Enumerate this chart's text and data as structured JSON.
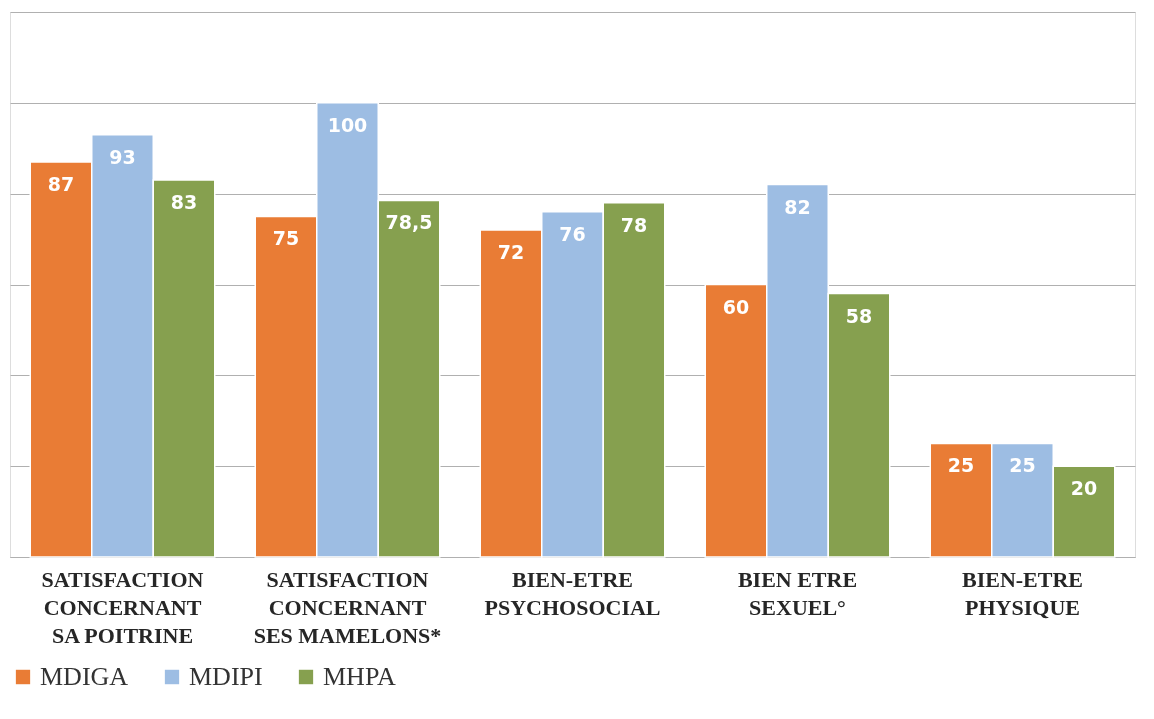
{
  "chart_data": {
    "type": "bar",
    "categories": [
      "SATISFACTION\nCONCERNANT\nSA POITRINE",
      "SATISFACTION\nCONCERNANT\nSES MAMELONS*",
      "BIEN-ETRE\nPSYCHOSOCIAL",
      "BIEN ETRE\nSEXUEL°",
      "BIEN-ETRE\nPHYSIQUE"
    ],
    "series": [
      {
        "name": "MDIGA",
        "color": "#e97c35",
        "values": [
          87,
          75,
          72,
          60,
          25
        ],
        "value_labels": [
          "87",
          "75",
          "72",
          "60",
          "25"
        ]
      },
      {
        "name": "MDIPI",
        "color": "#9dbde3",
        "values": [
          93,
          100,
          76,
          82,
          25
        ],
        "value_labels": [
          "93",
          "100",
          "76",
          "82",
          "25"
        ]
      },
      {
        "name": "MHPA",
        "color": "#86a04f",
        "values": [
          83,
          78.5,
          78,
          58,
          20
        ],
        "value_labels": [
          "83",
          "78,5",
          "78",
          "58",
          "20"
        ]
      }
    ],
    "ylim": [
      0,
      120
    ],
    "yticks": [
      {
        "value": 0,
        "label": null
      },
      {
        "value": 20,
        "label": null
      },
      {
        "value": 40,
        "label": null
      },
      {
        "value": 60,
        "label": null
      },
      {
        "value": 80,
        "label": null
      },
      {
        "value": 100,
        "label": null
      },
      {
        "value": 120,
        "label": null
      }
    ],
    "tick_labels": "x",
    "grid": "y",
    "legend": "bottom"
  }
}
